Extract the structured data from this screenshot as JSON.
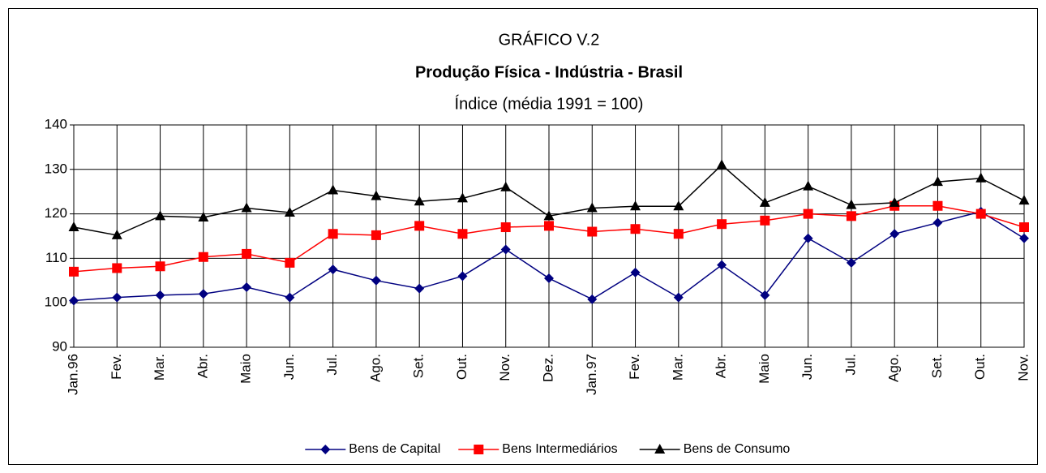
{
  "chart_data": {
    "type": "line",
    "title": "GRÁFICO V.2",
    "subtitle": "Produção Física - Indústria - Brasil",
    "y_label": "Índice (média 1991 = 100)",
    "categories": [
      "Jan.96",
      "Fev.",
      "Mar.",
      "Abr.",
      "Maio",
      "Jun.",
      "Jul.",
      "Ago.",
      "Set.",
      "Out.",
      "Nov.",
      "Dez.",
      "Jan.97",
      "Fev.",
      "Mar.",
      "Abr.",
      "Maio",
      "Jun.",
      "Jul.",
      "Ago.",
      "Set.",
      "Out.",
      "Nov."
    ],
    "series": [
      {
        "name": "Bens de Capital",
        "color": "#000080",
        "marker": "diamond",
        "values": [
          100.5,
          101.2,
          101.7,
          102,
          103.5,
          101.2,
          107.5,
          105,
          103.2,
          106,
          112,
          105.5,
          100.8,
          106.8,
          101.2,
          108.5,
          101.7,
          114.5,
          109,
          115.5,
          118,
          120.5,
          114.5
        ]
      },
      {
        "name": "Bens Intermediários",
        "color": "#ff0000",
        "marker": "square",
        "values": [
          107,
          107.8,
          108.2,
          110.3,
          111,
          109,
          115.5,
          115.2,
          117.3,
          115.5,
          117,
          117.3,
          116,
          116.6,
          115.5,
          117.7,
          118.5,
          120,
          119.5,
          121.8,
          121.8,
          120,
          117
        ]
      },
      {
        "name": "Bens de Consumo",
        "color": "#000000",
        "marker": "triangle",
        "values": [
          117,
          115.2,
          119.5,
          119.2,
          121.3,
          120.3,
          125.3,
          124,
          122.8,
          123.5,
          126,
          119.5,
          121.3,
          121.7,
          121.7,
          131,
          122.5,
          126.2,
          122,
          122.5,
          127.2,
          128,
          123
        ]
      }
    ],
    "ylim": [
      90,
      140
    ],
    "yticks": [
      90,
      100,
      110,
      120,
      130,
      140
    ],
    "grid": true
  }
}
